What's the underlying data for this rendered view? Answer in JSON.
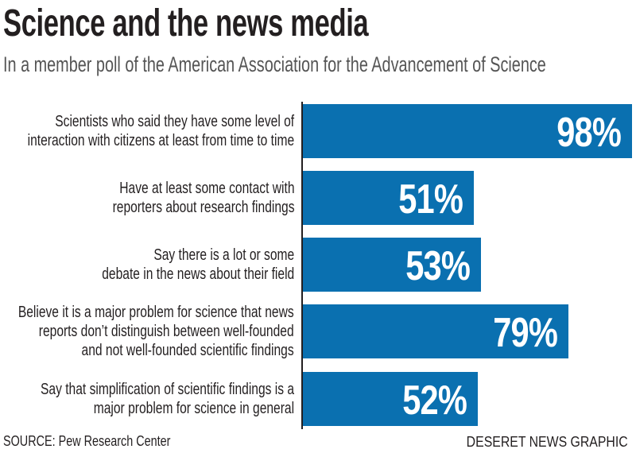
{
  "chart_data": {
    "type": "bar",
    "orientation": "horizontal",
    "title": "Science and the news media",
    "subtitle": "In a member poll of the American Association for the Advancement of Science",
    "categories": [
      [
        "Scientists who said they have some level of",
        "interaction with citizens at least from time to time"
      ],
      [
        "Have at least some contact with",
        "reporters about research findings"
      ],
      [
        "Say there is a lot or some",
        "debate in the news about their field"
      ],
      [
        "Believe it is a major problem for science that news",
        "reports don’t distinguish between well-founded",
        "and not well-founded scientific findings"
      ],
      [
        "Say that simplification of scientific findings is a",
        "major problem for science in general"
      ]
    ],
    "values": [
      98,
      51,
      53,
      79,
      52
    ],
    "value_labels": [
      "98%",
      "51%",
      "53%",
      "79%",
      "52%"
    ],
    "bar_color": "#0a70b0",
    "grid": false,
    "source": "SOURCE: Pew Research Center",
    "credit": "DESERET NEWS GRAPHIC"
  }
}
